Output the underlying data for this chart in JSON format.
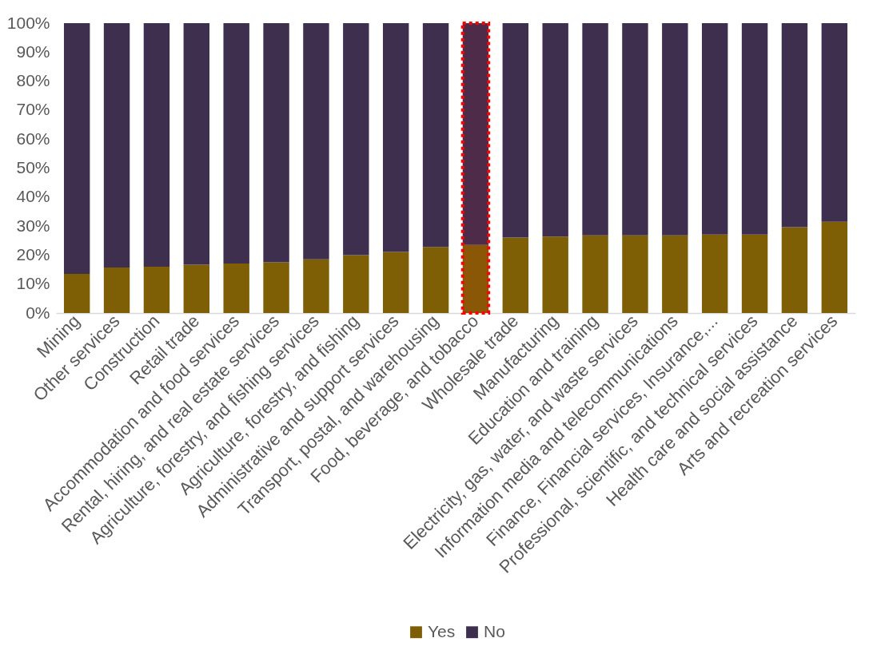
{
  "chart_data": {
    "type": "bar",
    "stacked": true,
    "categories": [
      "Mining",
      "Other services",
      "Construction",
      "Retail trade",
      "Accommodation and food services",
      "Rental, hiring, and real estate services",
      "Agriculture, forestry, and fishing services",
      "Agriculture, forestry, and fishing",
      "Administrative and support services",
      "Transport, postal, and warehousing",
      "Food, beverage, and tobacco",
      "Wholesale trade",
      "Manufacturing",
      "Education and training",
      "Electricity, gas, water, and waste services",
      "Information media and telecommunications",
      "Finance, Financial services, Insurance,...",
      "Professional, scientific, and technical services",
      "Health care and social assistance",
      "Arts and recreation services"
    ],
    "series": [
      {
        "name": "Yes",
        "color": "#7f5f06",
        "values": [
          13.5,
          15.7,
          16.0,
          16.7,
          17.1,
          17.5,
          18.5,
          20.0,
          21.1,
          22.8,
          23.5,
          26.0,
          26.4,
          26.8,
          26.8,
          26.8,
          27.1,
          27.1,
          29.6,
          31.5
        ]
      },
      {
        "name": "No",
        "color": "#3f2f4f",
        "values": [
          86.5,
          84.3,
          84.0,
          83.3,
          82.9,
          82.5,
          81.5,
          80.0,
          78.9,
          77.2,
          76.5,
          74.0,
          73.6,
          73.2,
          73.2,
          73.2,
          72.9,
          72.9,
          70.4,
          68.5
        ]
      }
    ],
    "ylim": [
      0,
      100
    ],
    "yticks": [
      {
        "value": 0,
        "label": "0%"
      },
      {
        "value": 10,
        "label": "10%"
      },
      {
        "value": 20,
        "label": "20%"
      },
      {
        "value": 30,
        "label": "30%"
      },
      {
        "value": 40,
        "label": "40%"
      },
      {
        "value": 50,
        "label": "50%"
      },
      {
        "value": 60,
        "label": "60%"
      },
      {
        "value": 70,
        "label": "70%"
      },
      {
        "value": 80,
        "label": "80%"
      },
      {
        "value": 90,
        "label": "90%"
      },
      {
        "value": 100,
        "label": "100%"
      }
    ],
    "bands": [
      {
        "axis": "x",
        "from": "Food, beverage, and tobacco",
        "to": "Food, beverage, and tobacco",
        "color": "#ff0000"
      }
    ],
    "grid": false,
    "legend": "bottom"
  }
}
